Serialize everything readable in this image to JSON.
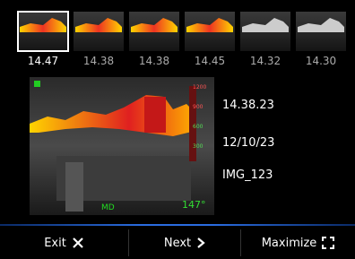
{
  "thumbnails": [
    {
      "label": "14.47",
      "selected": true
    },
    {
      "label": "14.38"
    },
    {
      "label": "14.38"
    },
    {
      "label": "14.45"
    },
    {
      "label": "14.32"
    },
    {
      "label": "14.30"
    }
  ],
  "image": {
    "scale_labels": [
      "1200",
      "900",
      "600",
      "300"
    ],
    "temperature": "147°"
  },
  "details": {
    "time": "14.38.23",
    "date": "12/10/23",
    "file": "IMG_123"
  },
  "buttons": {
    "exit": "Exit",
    "next": "Next",
    "maximize": "Maximize"
  }
}
